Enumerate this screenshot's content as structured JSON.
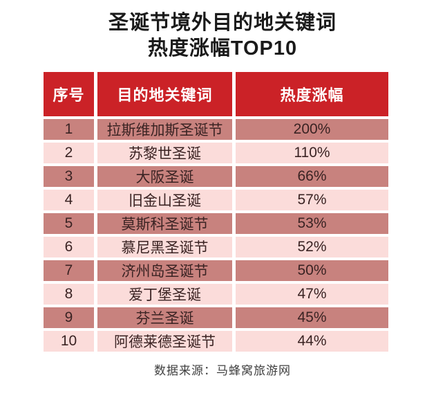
{
  "title": {
    "line1": "圣诞节境外目的地关键词",
    "line2": "热度涨幅TOP10"
  },
  "table": {
    "headers": [
      "序号",
      "目的地关键词",
      "热度涨幅"
    ],
    "rows": [
      {
        "rank": "1",
        "keyword": "拉斯维加斯圣诞节",
        "growth": "200%"
      },
      {
        "rank": "2",
        "keyword": "苏黎世圣诞",
        "growth": "110%"
      },
      {
        "rank": "3",
        "keyword": "大阪圣诞",
        "growth": "66%"
      },
      {
        "rank": "4",
        "keyword": "旧金山圣诞",
        "growth": "57%"
      },
      {
        "rank": "5",
        "keyword": "莫斯科圣诞节",
        "growth": "53%"
      },
      {
        "rank": "6",
        "keyword": "慕尼黑圣诞节",
        "growth": "52%"
      },
      {
        "rank": "7",
        "keyword": "济州岛圣诞节",
        "growth": "50%"
      },
      {
        "rank": "8",
        "keyword": "爱丁堡圣诞",
        "growth": "47%"
      },
      {
        "rank": "9",
        "keyword": "芬兰圣诞",
        "growth": "45%"
      },
      {
        "rank": "10",
        "keyword": "阿德莱德圣诞节",
        "growth": "44%"
      }
    ]
  },
  "footer": {
    "source": "数据来源：马蜂窝旅游网"
  },
  "colors": {
    "header_bg": "#cb2227",
    "header_text": "#ffffff",
    "row_odd": "#c8827e",
    "row_even": "#fbdcda",
    "row_text": "#3a2323",
    "title_text": "#1a1a1a",
    "footer_text": "#3f3f3f",
    "page_bg": "#ffffff"
  },
  "chart_data": {
    "type": "table",
    "title": "圣诞节境外目的地关键词 热度涨幅TOP10",
    "columns": [
      "序号",
      "目的地关键词",
      "热度涨幅"
    ],
    "categories": [
      "拉斯维加斯圣诞节",
      "苏黎世圣诞",
      "大阪圣诞",
      "旧金山圣诞",
      "莫斯科圣诞节",
      "慕尼黑圣诞节",
      "济州岛圣诞节",
      "爱丁堡圣诞",
      "芬兰圣诞",
      "阿德莱德圣诞节"
    ],
    "values_percent": [
      200,
      110,
      66,
      57,
      53,
      52,
      50,
      47,
      45,
      44
    ],
    "ranks": [
      1,
      2,
      3,
      4,
      5,
      6,
      7,
      8,
      9,
      10
    ],
    "source": "数据来源：马蜂窝旅游网",
    "layout_hints": {
      "row_striping": [
        "dark",
        "light"
      ],
      "header_style": "red background, white bold text",
      "cell_gap_color": "#ffffff"
    }
  }
}
